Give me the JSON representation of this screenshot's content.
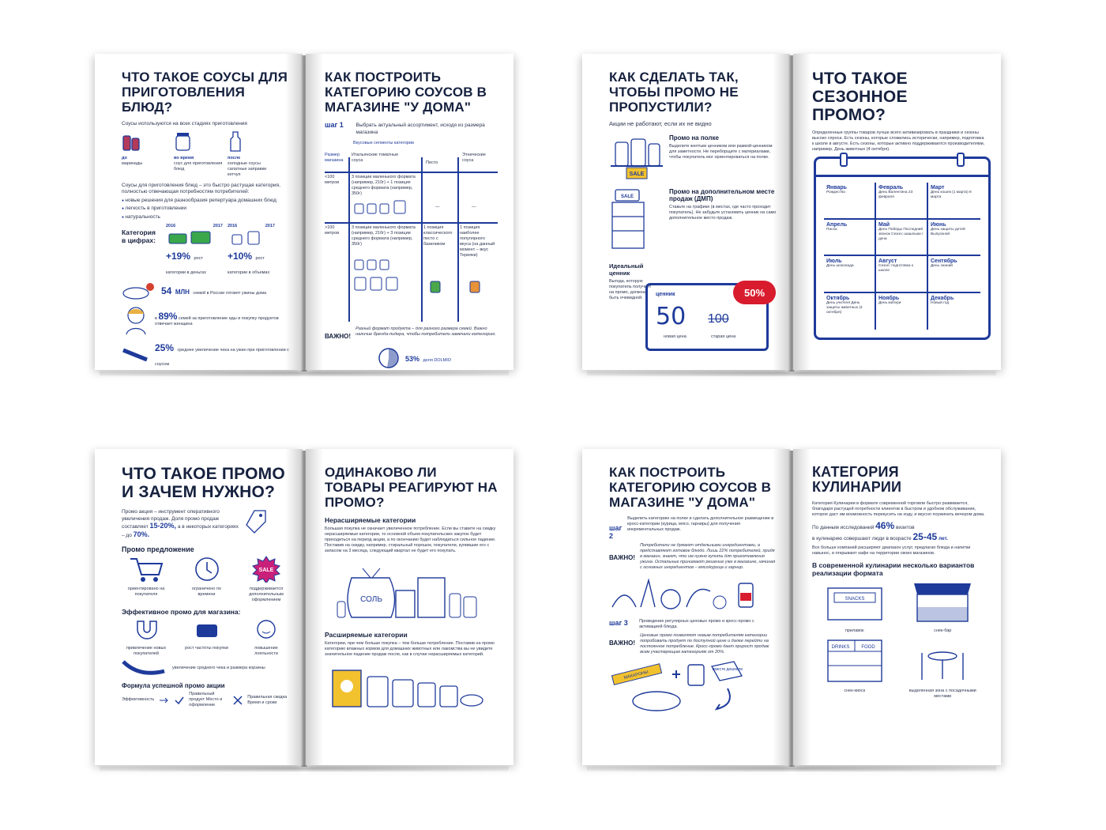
{
  "spreads": [
    {
      "left": {
        "title": "Что такое соусы для приготовления блюд?",
        "intro": "Соусы используются на всех стадиях приготовления",
        "stages": [
          {
            "when": "до",
            "what": "маринады"
          },
          {
            "when": "во время",
            "what": "соус для приготовления блюд"
          },
          {
            "when": "после",
            "what": "холодные соусы салатные заправки кетчуп"
          }
        ],
        "desc": "Соусы для приготовления блюд – это быстро растущая категория, полностью отвечающая потребностям потребителей:",
        "bullets": [
          "новые решения для разнообразия репертуара домашних блюд",
          "легкость в приготовлении",
          "натуральность"
        ],
        "category_label": "Категория в цифрах:",
        "years": [
          "2016",
          "2017",
          "2016",
          "2017"
        ],
        "stat1_num": "+19%",
        "stat1_text": "рост категории в деньгах",
        "stat2_num": "+10%",
        "stat2_text": "рост категории в объемах",
        "stat3_num": "54",
        "stat3_unit": "МЛН",
        "stat3_text": "семей в России готовят ужины дома",
        "stat4_pre": "в",
        "stat4_num": "89%",
        "stat4_text": "семей за приготовление еды и покупку продуктов отвечает женщина",
        "stat5_num": "25%",
        "stat5_text": "среднее увеличение чека на ужин при приготовлении с соусом"
      },
      "right": {
        "title": "Как построить категорию соусов в магазине \"У дома\"",
        "step": "шаг 1",
        "step_text": "Выбрать актуальный ассортимент, исходя из размера магазина",
        "segments": "Вкусовые сегменты категории",
        "col_size": "Размер магазина",
        "col1": "Итальянские томатные соуса",
        "col2": "Песто",
        "col3": "Этнические соуса",
        "row1_size": "<100 метров",
        "row1_col1": "3 позиции маленького формата (например, 210г) + 1 позиция среднего формата (например, 350г)",
        "row1_dash": "—",
        "row2_size": ">100 метров",
        "row2_col1": "3 позиции маленького формата (например, 210г) + 3 позиции среднего формата (например, 350г)",
        "row2_col2": "1 позиция классического песто с базиликом",
        "row2_col3": "1 позиция наиболее популярного вкуса (на данный момент – вкус Терияки)",
        "warn": "ВАЖНО!",
        "warn_text": "Разный формат продукта – для разного размера семей. Важно наличие бренда-лидера, чтобы потребители замечали категорию.",
        "share_num": "53%",
        "share_text": "доля DOLMIO"
      }
    },
    {
      "left": {
        "title": "Как сделать так, чтобы промо не пропустили?",
        "intro": "Акции не работают, если их не видно",
        "h1": "Промо на полке",
        "t1": "Выделите желтым ценником или рамкой-ценником для заметности. Не переборщите с материалами, чтобы покупатель мог ориентироваться на полке.",
        "sale": "SALE",
        "h2": "Промо на дополнительном месте продаж (ДМП)",
        "t2": "Ставьте на трафике (в местах, где часто проходит покупатель). Не забудьте установить ценник на само дополнительное место продаж.",
        "h3": "Идеальный ценник",
        "t3": "Выгода, которую покупатель получает на промо, должна быть очевидной.",
        "tag_label": "ценник",
        "badge": "50%",
        "new_price": "50",
        "old_price": "100",
        "new_label": "новая цена",
        "old_label": "старая цена"
      },
      "right": {
        "title": "Что такое сезонное промо?",
        "text": "Определенные группы товаров лучше всего активизировать в праздники и сезоны высоко спроса. Есть сезоны, которые сложились исторически, например, подготовка к школе в августе. Есть сезоны, которые активно поддерживаются производителями, например, День животных (4 октября).",
        "months": [
          {
            "name": "Январь",
            "note": "Рождество"
          },
          {
            "name": "Февраль",
            "note": "День Валентина 23 февраля"
          },
          {
            "name": "Март",
            "note": "День кошек (1 марта) 8 марта"
          },
          {
            "name": "Апрель",
            "note": "Пасха"
          },
          {
            "name": "Май",
            "note": "День Победы Последний звонок Сезон: шашлыки / дача"
          },
          {
            "name": "Июнь",
            "note": "День защиты детей Выпускной"
          },
          {
            "name": "Июль",
            "note": "День шоколада"
          },
          {
            "name": "Август",
            "note": "Сезон: подготовка к школе"
          },
          {
            "name": "Сентябрь",
            "note": "День знаний"
          },
          {
            "name": "Октябрь",
            "note": "День учителя День защиты животных (4 октября)"
          },
          {
            "name": "Ноябрь",
            "note": "День матери"
          },
          {
            "name": "Декабрь",
            "note": "Новый год"
          }
        ]
      }
    },
    {
      "left": {
        "title": "Что такое промо и зачем нужно?",
        "intro": "Промо акция – инструмент оперативного увеличения продаж. Доля промо продаж составляет",
        "intro_num1": "15-20%,",
        "intro_mid": "а в некоторых категориях – до",
        "intro_num2": "70%.",
        "h1": "Промо предложение",
        "offers": [
          "ориентировано на покупателя",
          "ограничено по времени",
          "поддерживается дополнительным оформлением"
        ],
        "sale": "SALE",
        "h2": "Эффективное промо для магазина:",
        "effects": [
          "привлечение новых покупателей",
          "рост частоты покупки",
          "повышение лояльности"
        ],
        "effect4": "увеличение среднего чека и размера корзины",
        "h3": "Формула успешной промо акции",
        "f_eff": "Эффективность",
        "f_a": "Правильный продукт Место и оформление",
        "f_b": "Правильная скидка Время и сроки"
      },
      "right": {
        "title": "Одинаково ли товары реагируют на промо?",
        "h1": "Нерасширяемые категории",
        "t1": "Большая покупка не означает увеличенное потребление. Если вы ставите на скидку нерасширяемые категории, то основной объем покупательских закупок будет приходиться на период акции, а по окончанию будет наблюдаться сильное падение. Поставив на скидку, например, стиральный порошок, покупатели, купившие его с запасом на 3 месяца, следующий квартал не будет его покупать.",
        "bag": "СОЛЬ",
        "h2": "Расширяемые категории",
        "t2": "Категории, при чем больше покупка – тем больше потребление. Поставив на промо категорию влажных кормов для домашних животных или лакомства вы не увидите значительное падение продаж после, как в случае нерасширяемых категорий."
      }
    },
    {
      "left": {
        "title": "Как построить категорию соусов в магазине \"У дома\"",
        "step2": "шаг 2",
        "step2_text": "Выделить категорию на полке и сделать дополнительное размещение в кросс-категории (курица, мясо, гарниры) для получения инкрементальных продаж.",
        "warn": "ВАЖНО!",
        "warn1_text": "Потребители не думают отдельными ингредиентами, а представляют готовое блюдо. Лишь 22% потребителей, придя в магазин, знают, что им нужно купить для приготовления ужина. Остальные принимают решение уже в магазине, начиная с основных ингредиентов – мясо/курица и гарнир.",
        "step3": "шаг 3",
        "step3_text": "Проведение регулярных ценовых промо и кросс-промо с активацией блюда.",
        "warn2_text": "Ценовые промо позволяют новым потребителям категории попробовать продукт по доступной цене и далее перейти на постоянное потребление. Кросс-промо дает прирост продаж всем участвующим категориям от 20%.",
        "pasta": "МАКАРОНЫ",
        "cheaper": "вместе дешевле"
      },
      "right": {
        "title": "Категория кулинарии",
        "p1": "Категория Кулинарии в формате современной торговли быстро развивается, благодаря растущей потребности клиентов в быстром и удобном обслуживании, которое даст им возможность перекусить на ходу, и вкусно поужинать вечером дома.",
        "p2_a": "По данным исследований",
        "p2_num": "46%",
        "p2_b": "визитов",
        "p2_c": "в кулинарию совершают люди в возрасте",
        "p2_age": "25-45",
        "p2_d": "лет.",
        "p3": "Все больше компаний расширяют диапазон услуг, предлагая блюда и напитки навынос, и открывают кафе на территории своих магазинов.",
        "h1": "В современной кулинарии несколько вариантов реализации формата",
        "snacks": "SNACKS",
        "drinks": "DRINKS",
        "food": "FOOD",
        "formats": [
          "прилавок",
          "снек-бар",
          "снек-киоск",
          "выделенная зона с посадочными местами"
        ]
      }
    }
  ]
}
